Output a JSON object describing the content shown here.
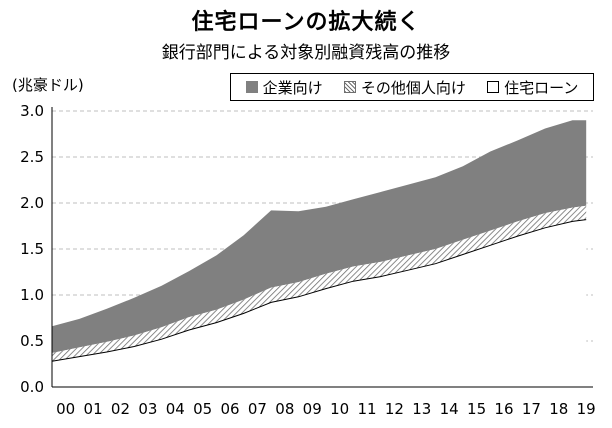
{
  "title": "住宅ローンの拡大続く",
  "subtitle": "銀行部門による対象別融資残高の推移",
  "unit_label": "(兆豪ドル)",
  "legend": [
    {
      "key": "corp",
      "label": "企業向け"
    },
    {
      "key": "other",
      "label": "その他個人向け"
    },
    {
      "key": "mortgage",
      "label": "住宅ローン"
    }
  ],
  "colors": {
    "corporate": "#808080",
    "other_hatch": "#6f6f6f",
    "mortgage_line": "#000000",
    "grid": "#bfbfbf"
  },
  "chart_data": {
    "type": "area",
    "stacked": true,
    "ylim": [
      0,
      3.0
    ],
    "yticks": [
      "0.0",
      "0.5",
      "1.0",
      "1.5",
      "2.0",
      "2.5",
      "3.0"
    ],
    "xticks": [
      "00",
      "01",
      "02",
      "03",
      "04",
      "05",
      "06",
      "07",
      "08",
      "09",
      "10",
      "11",
      "12",
      "13",
      "14",
      "15",
      "16",
      "17",
      "18",
      "19"
    ],
    "x": [
      2000,
      2001,
      2002,
      2003,
      2004,
      2005,
      2006,
      2007,
      2008,
      2009,
      2010,
      2011,
      2012,
      2013,
      2014,
      2015,
      2016,
      2017,
      2018,
      2019,
      2019.5
    ],
    "series": [
      {
        "name": "住宅ローン",
        "values": [
          0.28,
          0.33,
          0.38,
          0.44,
          0.52,
          0.62,
          0.7,
          0.8,
          0.92,
          0.98,
          1.07,
          1.15,
          1.2,
          1.27,
          1.34,
          1.44,
          1.54,
          1.64,
          1.73,
          1.8,
          1.82
        ]
      },
      {
        "name": "その他個人向け",
        "values": [
          0.09,
          0.1,
          0.11,
          0.12,
          0.13,
          0.14,
          0.14,
          0.15,
          0.16,
          0.16,
          0.16,
          0.16,
          0.16,
          0.16,
          0.16,
          0.16,
          0.16,
          0.16,
          0.16,
          0.15,
          0.15
        ]
      },
      {
        "name": "企業向け",
        "values": [
          0.29,
          0.31,
          0.36,
          0.41,
          0.45,
          0.5,
          0.59,
          0.7,
          0.84,
          0.77,
          0.73,
          0.73,
          0.76,
          0.77,
          0.78,
          0.8,
          0.86,
          0.88,
          0.92,
          0.95,
          0.93
        ]
      }
    ]
  }
}
